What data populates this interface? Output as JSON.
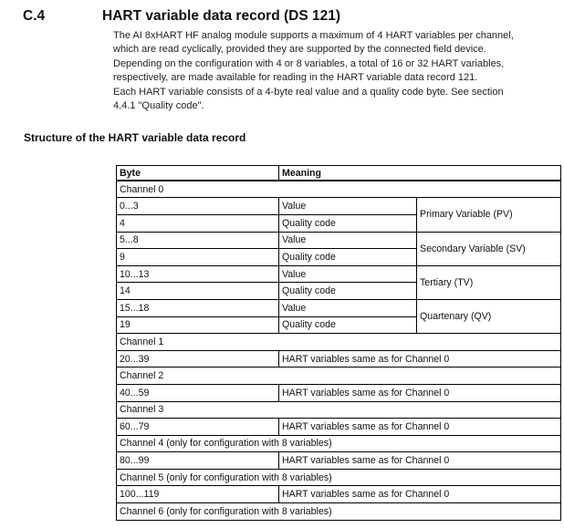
{
  "page": {
    "section_number": "C.4",
    "section_title": "HART variable data record (DS 121)",
    "paragraphs": [
      [
        "The AI 8xHART HF analog module supports a maximum of 4 HART variables per channel,",
        "which are read cyclically, provided they are supported by the connected field device.",
        "Depending on the configuration with 4 or 8 variables, a total of 16 or 32 HART variables,",
        "respectively, are made available for reading in the HART variable data record 121."
      ],
      [
        "Each HART variable consists of a 4-byte real value and a quality code byte. See section",
        "4.4.1 \"Quality code\"."
      ]
    ],
    "table_caption": "Structure of the HART variable data record"
  },
  "table": {
    "headers": [
      "Byte",
      "Meaning"
    ],
    "rows": [
      {
        "type": "section",
        "label": "Channel 0"
      },
      {
        "type": "value",
        "byte": "0...3",
        "meaning": "Value",
        "variable": "Primary Variable (PV)"
      },
      {
        "type": "quality",
        "byte": "4",
        "meaning": "Quality code"
      },
      {
        "type": "value",
        "byte": "5...8",
        "meaning": "Value",
        "variable": "Secondary Variable (SV)"
      },
      {
        "type": "quality",
        "byte": "9",
        "meaning": "Quality code"
      },
      {
        "type": "value",
        "byte": "10...13",
        "meaning": "Value",
        "variable": "Tertiary (TV)"
      },
      {
        "type": "quality",
        "byte": "14",
        "meaning": "Quality code"
      },
      {
        "type": "value",
        "byte": "15...18",
        "meaning": "Value",
        "variable": "Quartenary (QV)"
      },
      {
        "type": "quality",
        "byte": "19",
        "meaning": "Quality code"
      },
      {
        "type": "section",
        "label": "Channel 1"
      },
      {
        "type": "summary",
        "byte": "20...39",
        "meaning": "HART variables same as for Channel 0"
      },
      {
        "type": "section",
        "label": "Channel 2"
      },
      {
        "type": "summary",
        "byte": "40...59",
        "meaning": "HART variables same as for Channel 0"
      },
      {
        "type": "section",
        "label": "Channel 3"
      },
      {
        "type": "summary",
        "byte": "60...79",
        "meaning": "HART variables same as for Channel 0"
      },
      {
        "type": "section",
        "label": "Channel 4 (only for configuration with 8 variables)"
      },
      {
        "type": "summary",
        "byte": "80...99",
        "meaning": "HART variables same as for Channel 0"
      },
      {
        "type": "section",
        "label": "Channel 5 (only for configuration with 8 variables)"
      },
      {
        "type": "summary",
        "byte": "100...119",
        "meaning": "HART variables same as for Channel 0"
      },
      {
        "type": "section",
        "label": "Channel 6 (only for configuration with 8 variables)"
      }
    ]
  }
}
